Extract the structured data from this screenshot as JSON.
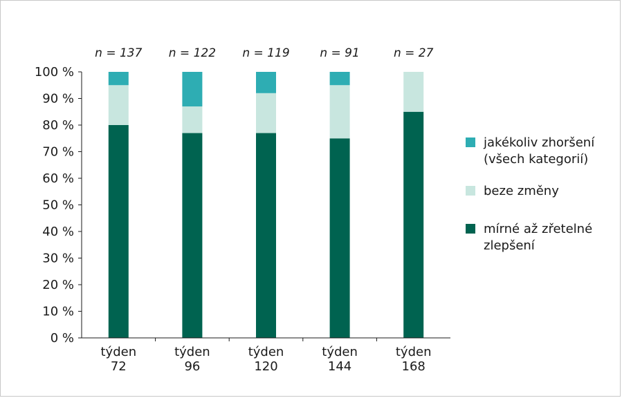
{
  "chart_data": {
    "type": "bar",
    "stacked": true,
    "categories": [
      [
        "týden",
        "72"
      ],
      [
        "týden",
        "96"
      ],
      [
        "týden",
        "120"
      ],
      [
        "týden",
        "144"
      ],
      [
        "týden",
        "168"
      ]
    ],
    "sample_sizes": [
      "n = 137",
      "n = 122",
      "n = 119",
      "n = 91",
      "n = 27"
    ],
    "series": [
      {
        "name": [
          "mírné až zřetelné",
          "zlepšení"
        ],
        "color": "#006350",
        "values": [
          80,
          77,
          77,
          75,
          85
        ]
      },
      {
        "name": [
          "beze změny"
        ],
        "color": "#c8e6df",
        "values": [
          15,
          10,
          15,
          20,
          15
        ]
      },
      {
        "name": [
          "jakékoliv zhoršení",
          "(všech kategorií)"
        ],
        "color": "#2eadb3",
        "values": [
          5,
          13,
          8,
          5,
          0
        ]
      }
    ],
    "legend_order": [
      2,
      1,
      0
    ],
    "legend_position": "right",
    "ylim": [
      0,
      100
    ],
    "yticks": [
      0,
      10,
      20,
      30,
      40,
      50,
      60,
      70,
      80,
      90,
      100
    ],
    "ytick_suffix": " %",
    "grid": false
  }
}
